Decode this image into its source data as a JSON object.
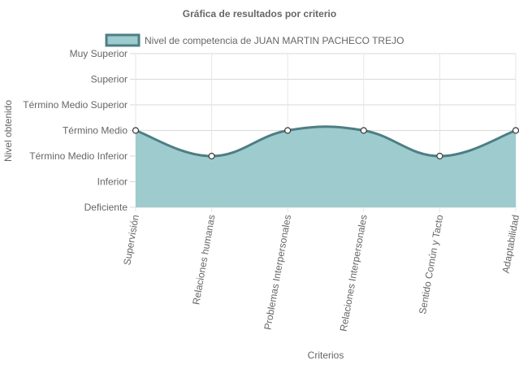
{
  "chart_data": {
    "type": "area",
    "title": "Gráfica de resultados por criterio",
    "xlabel": "Criterios",
    "ylabel": "Nivel obtenido",
    "levels": [
      "Deficiente",
      "Inferior",
      "Término Medio Inferior",
      "Término Medio",
      "Término Medio Superior",
      "Superior",
      "Muy Superior"
    ],
    "ylim": [
      0,
      6
    ],
    "categories": [
      "Supervisión",
      "Relaciones humanas",
      "Problemas Interpersonales",
      "Relaciones Interpersonales",
      "Sentido Común y Tacto",
      "Adaptabilidad"
    ],
    "series": [
      {
        "name": "Nivel de competencia de JUAN MARTIN PACHECO TREJO",
        "values": [
          3,
          2,
          3,
          3,
          2,
          3
        ]
      }
    ],
    "legend_position": "top",
    "grid": true,
    "colors": {
      "fill": "#9ecbce",
      "line": "#4d7e83",
      "point_fill": "#ffffff",
      "point_stroke": "#3a3a3a"
    }
  }
}
